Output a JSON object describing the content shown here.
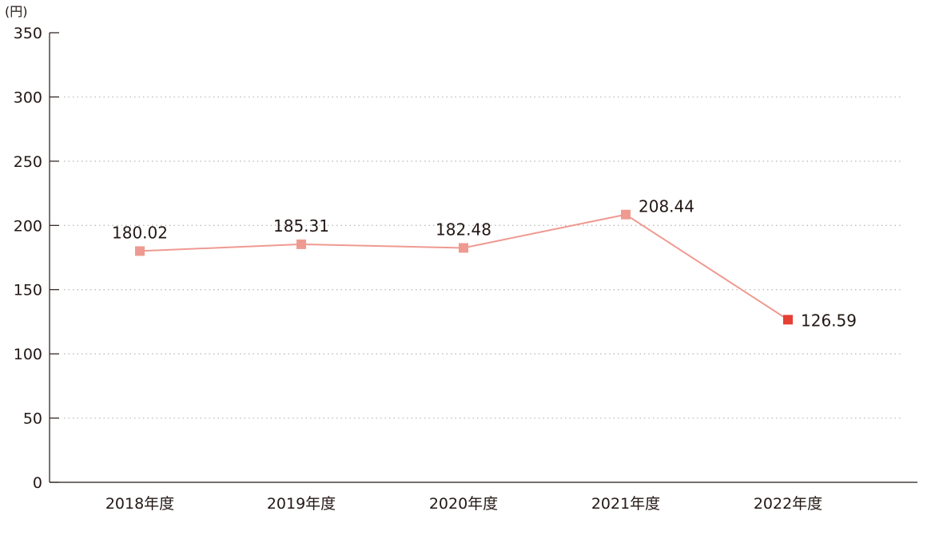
{
  "chart_data": {
    "type": "line",
    "unit_label": "(円)",
    "categories": [
      "2018年度",
      "2019年度",
      "2020年度",
      "2021年度",
      "2022年度"
    ],
    "values": [
      180.02,
      185.31,
      182.48,
      208.44,
      126.59
    ],
    "data_labels": [
      "180.02",
      "185.31",
      "182.48",
      "208.44",
      "126.59"
    ],
    "y_ticks": [
      "0",
      "50",
      "100",
      "150",
      "200",
      "250",
      "300",
      "350"
    ],
    "ylim": [
      0,
      350
    ],
    "grid": true,
    "colors": {
      "line": "#ef9a91",
      "marker": "#ef9a91",
      "highlight_marker": "#e63f35",
      "axis": "#231815",
      "grid": "#b5b5b5"
    },
    "highlight_index": 4
  }
}
